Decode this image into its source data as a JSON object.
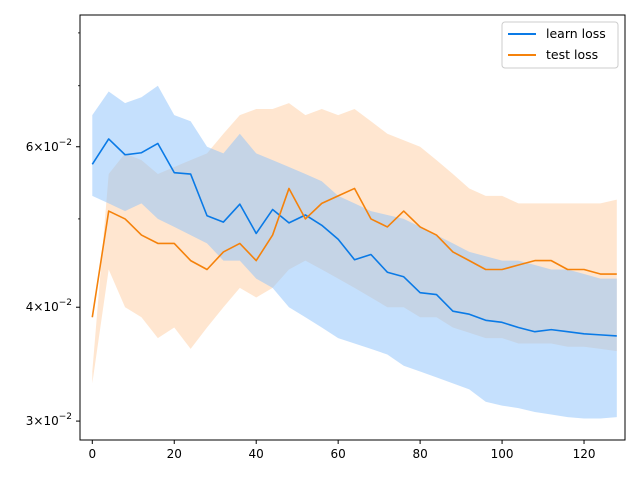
{
  "chart_data": {
    "type": "line",
    "title": "",
    "xlabel": "",
    "ylabel": "",
    "xlim": [
      -3,
      130
    ],
    "ylim": [
      0.0286,
      0.0837
    ],
    "yscale": "log",
    "grid": false,
    "legend_position": "top-right",
    "x_ticks": [
      0,
      20,
      40,
      60,
      80,
      100,
      120
    ],
    "x_tick_labels": [
      "0",
      "20",
      "40",
      "60",
      "80",
      "100",
      "120"
    ],
    "y_ticks": [
      {
        "value": 0.06,
        "mantissa": "6",
        "base": "10",
        "exponent": "−2"
      },
      {
        "value": 0.04,
        "mantissa": "4",
        "base": "10",
        "exponent": "−2"
      },
      {
        "value": 0.03,
        "mantissa": "3",
        "base": "10",
        "exponent": "−2"
      }
    ],
    "series": [
      {
        "name": "learn loss",
        "color": "#1f77b4",
        "line_color": "#0a7ae6",
        "band_color": "#8cc2fb",
        "x_step": 4,
        "mean": [
          0.0574,
          0.0612,
          0.0588,
          0.0591,
          0.0605,
          0.0562,
          0.056,
          0.0504,
          0.0496,
          0.0519,
          0.0482,
          0.0512,
          0.0495,
          0.0505,
          0.0492,
          0.0475,
          0.0451,
          0.0457,
          0.0437,
          0.0432,
          0.0415,
          0.0413,
          0.0396,
          0.0393,
          0.0387,
          0.0385,
          0.038,
          0.0376,
          0.0378,
          0.0376,
          0.0374,
          0.0373,
          0.0372
        ],
        "upper": [
          0.065,
          0.069,
          0.067,
          0.068,
          0.07,
          0.065,
          0.064,
          0.06,
          0.059,
          0.062,
          0.059,
          0.058,
          0.057,
          0.056,
          0.055,
          0.053,
          0.052,
          0.051,
          0.0505,
          0.05,
          0.049,
          0.048,
          0.047,
          0.046,
          0.0455,
          0.045,
          0.045,
          0.0445,
          0.044,
          0.044,
          0.0435,
          0.043,
          0.043
        ],
        "lower": [
          0.053,
          0.052,
          0.051,
          0.052,
          0.05,
          0.049,
          0.048,
          0.047,
          0.045,
          0.045,
          0.043,
          0.042,
          0.04,
          0.039,
          0.038,
          0.037,
          0.0365,
          0.036,
          0.0355,
          0.0345,
          0.034,
          0.0335,
          0.033,
          0.0325,
          0.0315,
          0.0312,
          0.031,
          0.0307,
          0.0305,
          0.0303,
          0.0302,
          0.0302,
          0.0303
        ]
      },
      {
        "name": "test loss",
        "color": "#ff7f0e",
        "line_color": "#f5820b",
        "band_color": "#ffd6b0",
        "x_step": 4,
        "mean": [
          0.039,
          0.051,
          0.05,
          0.048,
          0.047,
          0.047,
          0.045,
          0.044,
          0.046,
          0.047,
          0.045,
          0.048,
          0.054,
          0.05,
          0.052,
          0.053,
          0.054,
          0.05,
          0.049,
          0.051,
          0.049,
          0.048,
          0.046,
          0.045,
          0.044,
          0.044,
          0.0445,
          0.045,
          0.045,
          0.044,
          0.044,
          0.0435,
          0.0435
        ],
        "upper": [
          0.034,
          0.056,
          0.059,
          0.058,
          0.056,
          0.057,
          0.058,
          0.059,
          0.062,
          0.065,
          0.066,
          0.066,
          0.067,
          0.065,
          0.066,
          0.065,
          0.066,
          0.064,
          0.062,
          0.061,
          0.06,
          0.058,
          0.056,
          0.054,
          0.053,
          0.053,
          0.052,
          0.052,
          0.052,
          0.052,
          0.052,
          0.052,
          0.0525
        ],
        "lower": [
          0.033,
          0.044,
          0.04,
          0.039,
          0.037,
          0.038,
          0.036,
          0.038,
          0.04,
          0.042,
          0.041,
          0.042,
          0.044,
          0.045,
          0.044,
          0.043,
          0.042,
          0.041,
          0.04,
          0.04,
          0.039,
          0.039,
          0.038,
          0.0375,
          0.037,
          0.037,
          0.0365,
          0.0365,
          0.0365,
          0.0362,
          0.0362,
          0.036,
          0.0358
        ]
      }
    ]
  }
}
